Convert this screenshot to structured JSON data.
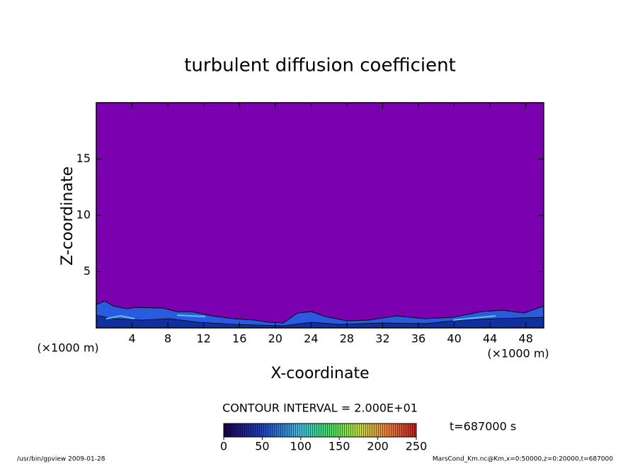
{
  "chart_data": {
    "type": "contour",
    "title": "turbulent diffusion coefficient",
    "xlabel": "X-coordinate",
    "ylabel": "Z-coordinate",
    "x_unit": "(×1000 m)",
    "xlim": [
      0,
      50
    ],
    "xticks": [
      4,
      8,
      12,
      16,
      20,
      24,
      28,
      32,
      36,
      40,
      44,
      48
    ],
    "ylim": [
      0,
      20
    ],
    "yticks": [
      5,
      10,
      15
    ],
    "contour_interval": "CONTOUR INTERVAL = 2.000E+01",
    "time_label": "t=687000 s",
    "colorbar": {
      "lim": [
        0,
        250
      ],
      "ticks": [
        0,
        50,
        100,
        150,
        200,
        250
      ]
    },
    "footer_left": "/usr/bin/gpview  2009-01-28",
    "footer_right": "MarsCond_Km.nc@Km,x=0:50000,z=0:20000,t=687000"
  }
}
